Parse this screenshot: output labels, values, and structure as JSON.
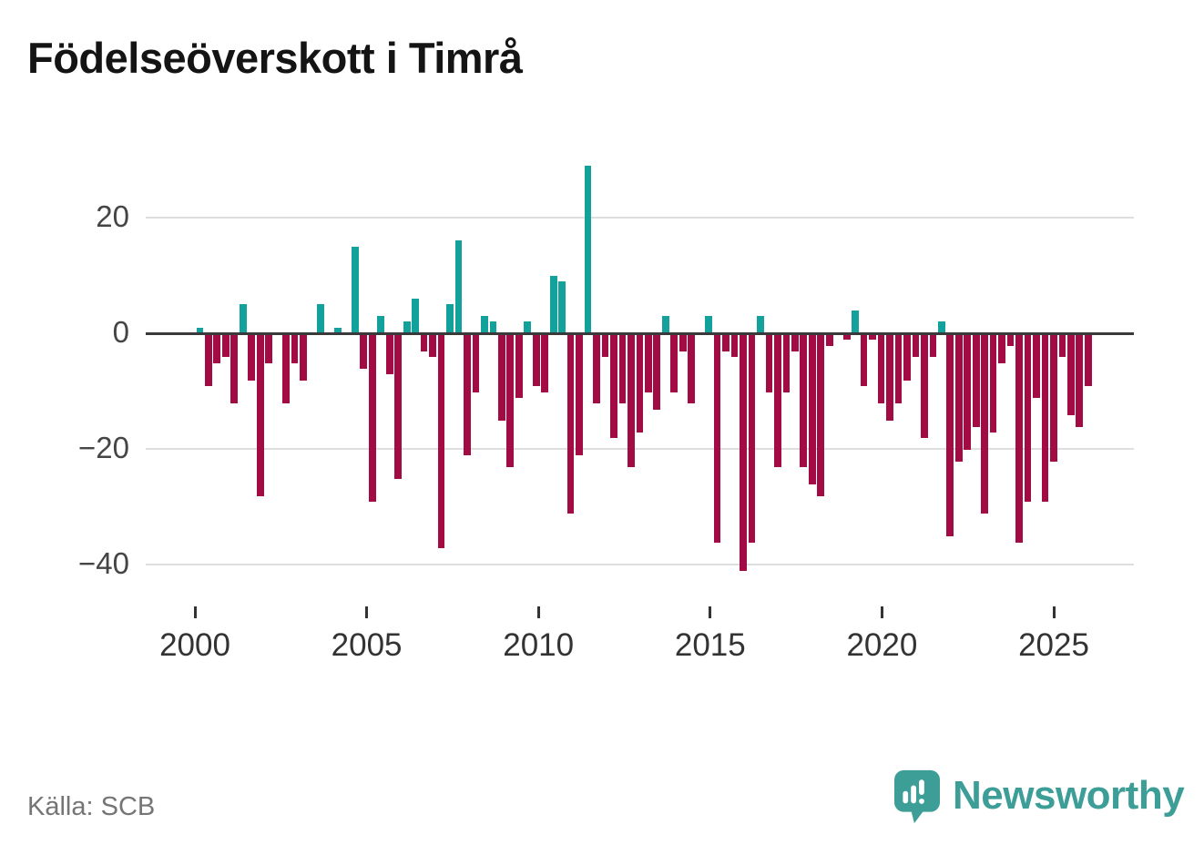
{
  "title": "Födelseöverskott i Timrå",
  "source": "Källa: SCB",
  "branding": {
    "name": "Newsworthy",
    "color": "#3d9e98",
    "logo_icon": "speech-bubble-bar-chart-icon"
  },
  "colors": {
    "positive_bar": "#12a19b",
    "negative_bar": "#a30b45",
    "zero_axis": "#3a3a3a",
    "gridline": "#dedede",
    "title_text": "#141414",
    "axis_label": "#454545",
    "x_label": "#333333",
    "source_text": "#757575"
  },
  "y_axis": {
    "tick_values": [
      20,
      0,
      -20,
      -40
    ],
    "tick_labels": [
      "20",
      "0",
      "−20",
      "−40"
    ]
  },
  "x_axis": {
    "tick_year_labels": [
      "2000",
      "2005",
      "2010",
      "2015",
      "2020",
      "2025"
    ]
  },
  "chart_data": {
    "type": "bar",
    "title": "Födelseöverskott i Timrå",
    "period": "quarterly",
    "start": "2000-Q1",
    "end": "2025-Q4",
    "ylim": [
      -45,
      31
    ],
    "grid": "horizontal",
    "legend": "none",
    "series_by_year": [
      {
        "year": 2000,
        "values": [
          1,
          -9,
          -5,
          -4
        ]
      },
      {
        "year": 2001,
        "values": [
          -12,
          5,
          -8,
          -28
        ]
      },
      {
        "year": 2002,
        "values": [
          -5,
          0,
          -12,
          -5
        ]
      },
      {
        "year": 2003,
        "values": [
          -8,
          0,
          5,
          0
        ]
      },
      {
        "year": 2004,
        "values": [
          1,
          0,
          15,
          -6
        ]
      },
      {
        "year": 2005,
        "values": [
          -29,
          3,
          -7,
          -25
        ]
      },
      {
        "year": 2006,
        "values": [
          2,
          6,
          -3,
          -4
        ]
      },
      {
        "year": 2007,
        "values": [
          -37,
          5,
          16,
          -21
        ]
      },
      {
        "year": 2008,
        "values": [
          -10,
          3,
          2,
          -15
        ]
      },
      {
        "year": 2009,
        "values": [
          -23,
          -11,
          2,
          -9
        ]
      },
      {
        "year": 2010,
        "values": [
          -10,
          10,
          9,
          -31
        ]
      },
      {
        "year": 2011,
        "values": [
          -21,
          29,
          -12,
          -4
        ]
      },
      {
        "year": 2012,
        "values": [
          -18,
          -12,
          -23,
          -17
        ]
      },
      {
        "year": 2013,
        "values": [
          -10,
          -13,
          3,
          -10
        ]
      },
      {
        "year": 2014,
        "values": [
          -3,
          -12,
          0,
          3
        ]
      },
      {
        "year": 2015,
        "values": [
          -36,
          -3,
          -4,
          -41
        ]
      },
      {
        "year": 2016,
        "values": [
          -36,
          3,
          -10,
          -23
        ]
      },
      {
        "year": 2017,
        "values": [
          -10,
          -3,
          -23,
          -26
        ]
      },
      {
        "year": 2018,
        "values": [
          -28,
          -2,
          0,
          -1
        ]
      },
      {
        "year": 2019,
        "values": [
          4,
          -9,
          -1,
          -12
        ]
      },
      {
        "year": 2020,
        "values": [
          -15,
          -12,
          -8,
          -4
        ]
      },
      {
        "year": 2021,
        "values": [
          -18,
          -4,
          2,
          -35
        ]
      },
      {
        "year": 2022,
        "values": [
          -22,
          -20,
          -16,
          -31
        ]
      },
      {
        "year": 2023,
        "values": [
          -17,
          -5,
          -2,
          -36
        ]
      },
      {
        "year": 2024,
        "values": [
          -29,
          -11,
          -29,
          -22
        ]
      },
      {
        "year": 2025,
        "values": [
          -4,
          -14,
          -16,
          -9
        ]
      }
    ]
  }
}
